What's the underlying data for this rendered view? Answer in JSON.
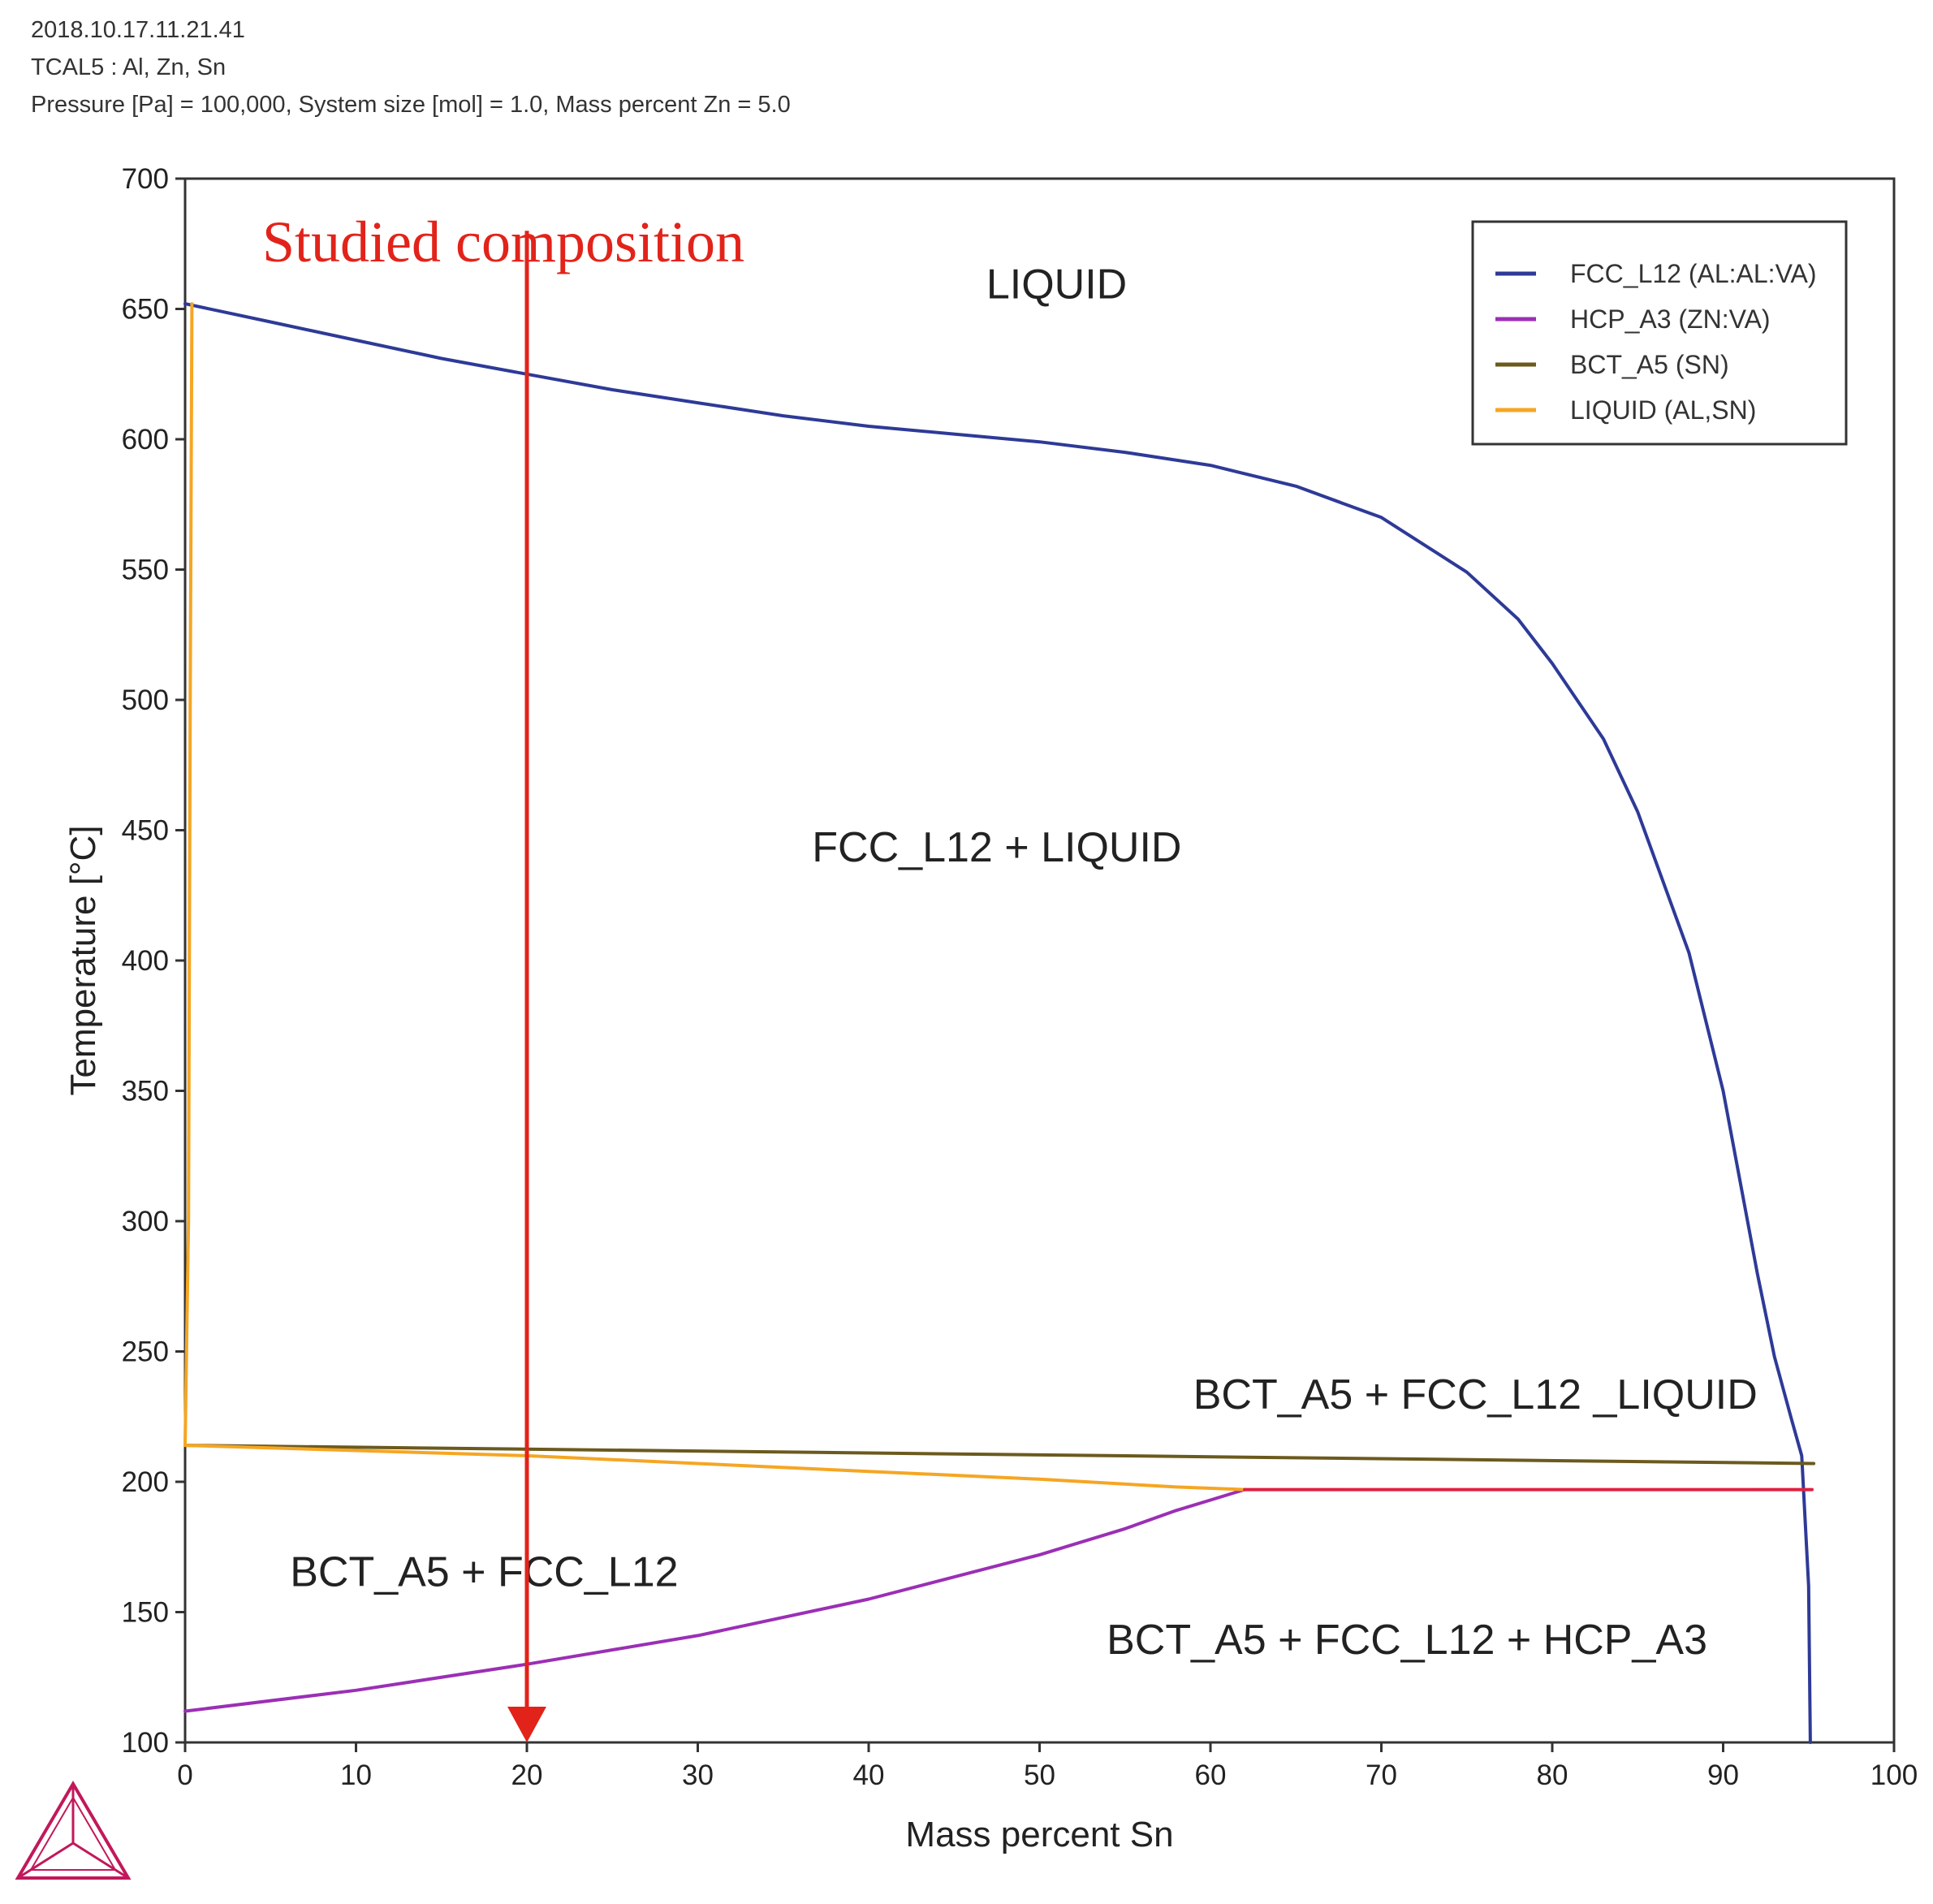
{
  "header": {
    "line1": "2018.10.17.11.21.41",
    "line2": "TCAL5 : Al, Zn, Sn",
    "line3": "Pressure [Pa] = 100,000, System size [mol] = 1.0, Mass percent Zn = 5.0"
  },
  "chart_data": {
    "type": "line",
    "xlabel": "Mass percent Sn",
    "ylabel": "Temperature [°C]",
    "xlim": [
      0,
      100
    ],
    "ylim": [
      100,
      700
    ],
    "x_ticks": [
      0,
      10,
      20,
      30,
      40,
      50,
      60,
      70,
      80,
      90,
      100
    ],
    "y_ticks": [
      100,
      150,
      200,
      250,
      300,
      350,
      400,
      450,
      500,
      550,
      600,
      650,
      700
    ],
    "grid": false,
    "legend_position": "top-right",
    "series": [
      {
        "name": "FCC_L12 (AL:AL:VA)",
        "color": "#2e3a97",
        "x": [
          0,
          5,
          10,
          15,
          20,
          25,
          30,
          35,
          40,
          45,
          50,
          55,
          60,
          65,
          70,
          75,
          78,
          80,
          83,
          85,
          88,
          90,
          92,
          93,
          94,
          94.6,
          95,
          95.1
        ],
        "y": [
          652,
          645,
          638,
          631,
          625,
          619,
          614,
          609,
          605,
          602,
          599,
          595,
          590,
          582,
          570,
          549,
          531,
          514,
          485,
          457,
          403,
          350,
          280,
          248,
          224,
          210,
          160,
          100
        ]
      },
      {
        "name": "HCP_A3 (ZN:VA)",
        "color": "#9b2fb5",
        "x": [
          0,
          10,
          20,
          30,
          40,
          50,
          55,
          58,
          60,
          62
        ],
        "y": [
          112,
          120,
          130,
          141,
          155,
          172,
          182,
          189,
          193,
          197
        ]
      },
      {
        "name": "BCT_A5 (SN)",
        "color": "#6b5a1e",
        "x": [
          0,
          95.3
        ],
        "y": [
          214,
          207
        ]
      },
      {
        "name": "LIQUID (AL,SN)",
        "color": "#f5a623",
        "segments": [
          {
            "x": [
              0,
              0.2,
              0.3,
              0.4
            ],
            "y": [
              214,
              300,
              500,
              652
            ]
          },
          {
            "x": [
              0,
              10,
              20,
              30,
              40,
              50,
              58,
              62
            ],
            "y": [
              214,
              212,
              210,
              207,
              204,
              201,
              198,
              197
            ]
          }
        ]
      },
      {
        "name": "",
        "color": "#e02040",
        "x": [
          62,
          95.2
        ],
        "y": [
          197,
          197
        ]
      }
    ],
    "region_labels": [
      {
        "text": "LIQUID",
        "x": 51,
        "y": 654
      },
      {
        "text": "FCC_L12 + LIQUID",
        "x": 47.5,
        "y": 438
      },
      {
        "text": "BCT_A5 + FCC_L12 _LIQUID",
        "x": 75.5,
        "y": 228
      },
      {
        "text": "BCT_A5 + FCC_L12",
        "x": 17.5,
        "y": 160
      },
      {
        "text": "BCT_A5 + FCC_L12 + HCP_A3",
        "x": 71.5,
        "y": 134
      }
    ],
    "annotation": {
      "text": "Studied composition",
      "color": "#e2231a",
      "arrow_x": 20,
      "arrow_from_y": 680,
      "arrow_to_y": 100
    }
  }
}
